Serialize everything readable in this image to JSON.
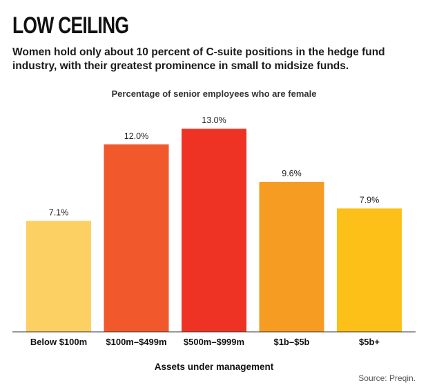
{
  "header": {
    "title": "LOW CEILING",
    "dek": "Women hold only about 10 percent of C-suite positions in the hedge fund industry, with their greatest prominence in small to midsize funds."
  },
  "footer": {
    "source": "Source: Preqin."
  },
  "chart_data": {
    "type": "bar",
    "title": "Percentage of senior employees who are female",
    "xlabel": "Assets under management",
    "ylabel": "",
    "categories": [
      "Below $100m",
      "$100m–$499m",
      "$500m–$999m",
      "$1b–$5b",
      "$5b+"
    ],
    "values": [
      7.1,
      12.0,
      13.0,
      9.6,
      7.9
    ],
    "value_labels": [
      "7.1%",
      "12.0%",
      "13.0%",
      "9.6%",
      "7.9%"
    ],
    "colors": [
      "#FCD063",
      "#F1582B",
      "#EE3325",
      "#F69C22",
      "#FCC018"
    ],
    "ylim": [
      0,
      14.6
    ],
    "grid": false,
    "legend": "none"
  }
}
